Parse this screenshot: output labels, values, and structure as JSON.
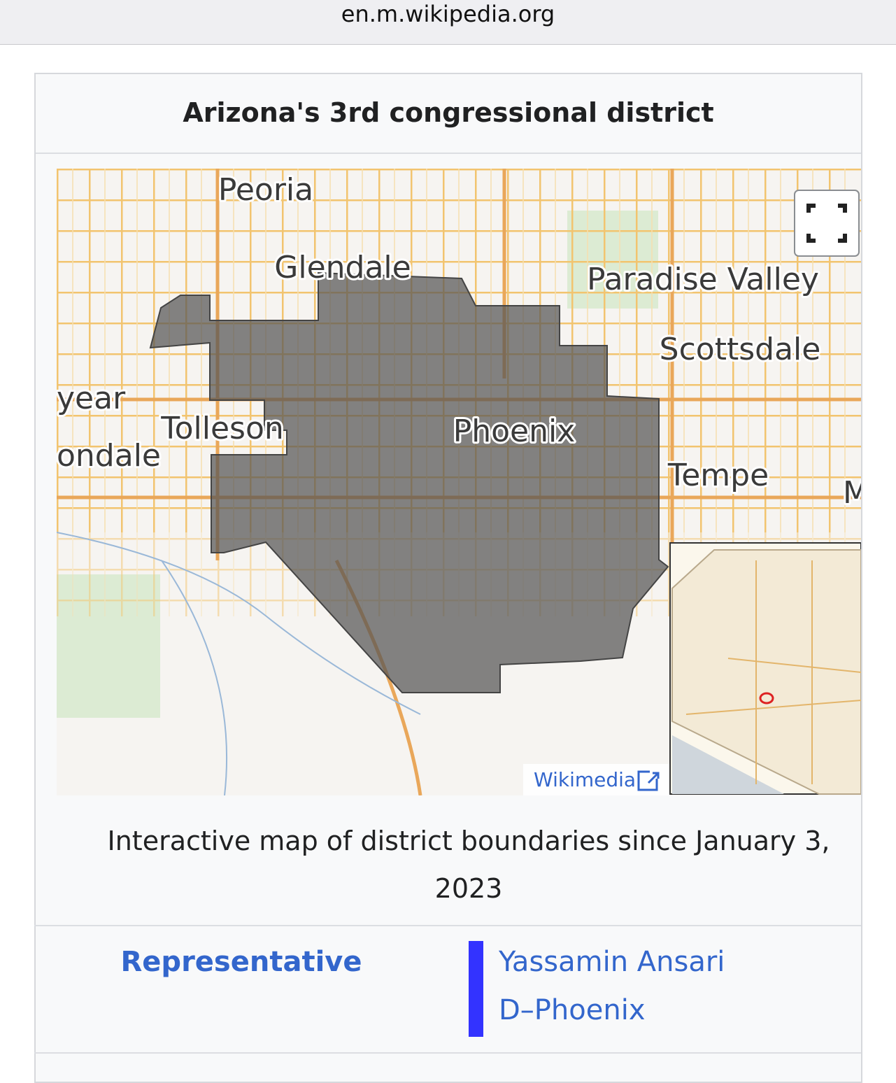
{
  "browser": {
    "url": "en.m.wikipedia.org"
  },
  "infobox": {
    "title": "Arizona's 3rd congressional district",
    "map": {
      "labels": [
        "Peoria",
        "Glendale",
        "Paradise Valley",
        "Scottsdale",
        "year",
        "Tolleson",
        "ondale",
        "Phoenix",
        "Tempe",
        "M"
      ],
      "attribution": "Wikimedia"
    },
    "caption": "Interactive map of district boundaries since January 3, 2023",
    "rows": [
      {
        "label": "Representative",
        "value": "Yassamin Ansari",
        "detail": "D–Phoenix"
      }
    ]
  }
}
